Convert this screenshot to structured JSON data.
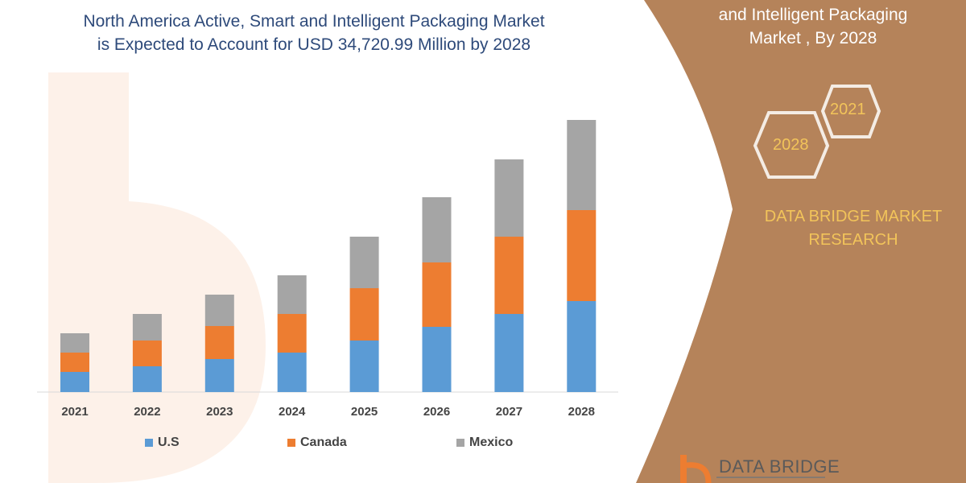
{
  "title_line1": "North America Active, Smart and Intelligent Packaging Market",
  "title_line2": "is Expected to Account for USD 34,720.99 Million by 2028",
  "side_panel": {
    "title_line1": "and Intelligent Packaging",
    "title_line2": "Market , By 2028",
    "hex_start": "2021",
    "hex_end": "2028",
    "brand_line1": "DATA BRIDGE MARKET",
    "brand_line2": "RESEARCH",
    "logo_text": "DATA BRIDGE",
    "panel_color": "#B5835A",
    "accent_color": "#F2C45A"
  },
  "chart_data": {
    "type": "bar",
    "stacked": true,
    "categories": [
      "2021",
      "2022",
      "2023",
      "2024",
      "2025",
      "2026",
      "2027",
      "2028"
    ],
    "series": [
      {
        "name": "U.S",
        "color": "#5B9BD5",
        "values": [
          25,
          32,
          41,
          49,
          64,
          81,
          97,
          113
        ]
      },
      {
        "name": "Canada",
        "color": "#ED7D31",
        "values": [
          24,
          32,
          41,
          48,
          65,
          80,
          96,
          113
        ]
      },
      {
        "name": "Mexico",
        "color": "#A5A5A5",
        "values": [
          24,
          33,
          39,
          48,
          64,
          81,
          96,
          112
        ]
      }
    ],
    "ylim": [
      0,
      340
    ],
    "yaxis_shown": false,
    "grid": false,
    "legend_position": "bottom"
  }
}
